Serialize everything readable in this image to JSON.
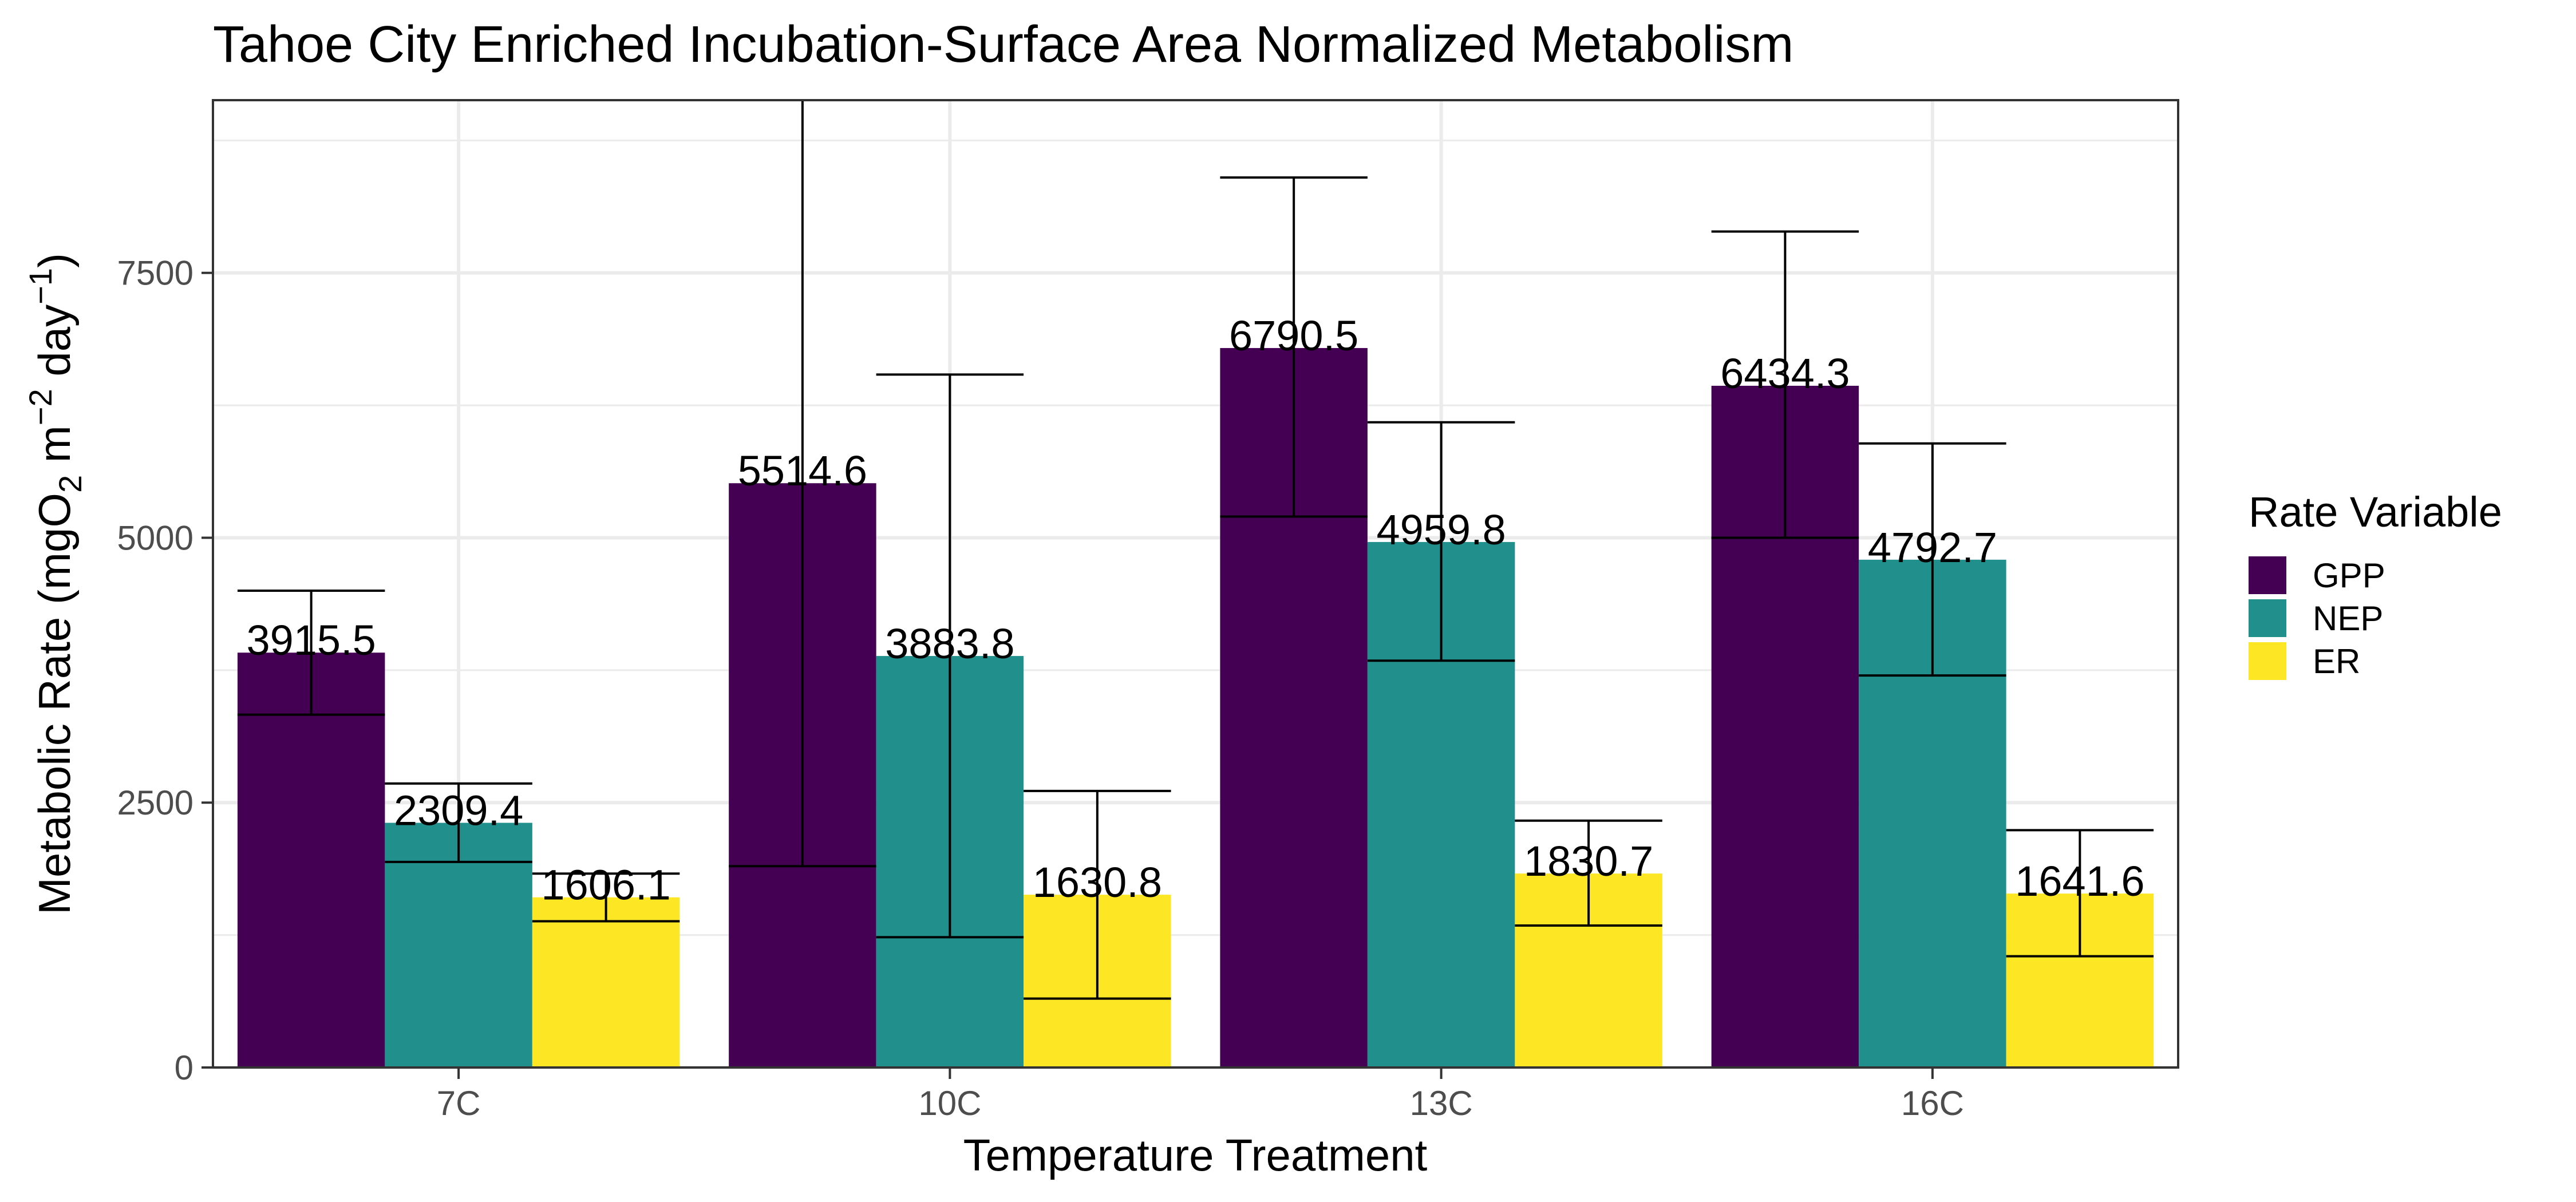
{
  "chart_data": {
    "type": "bar",
    "title": "Tahoe City Enriched Incubation-Surface Area Normalized Metabolism",
    "xlabel": "Temperature Treatment",
    "ylabel": {
      "prefix": "Metabolic Rate (mgO",
      "sub": "2",
      "mid": "  m",
      "sup1": "−2",
      "mid2": " day",
      "sup2": "−1",
      "suffix": ")"
    },
    "categories": [
      "7C",
      "10C",
      "13C",
      "16C"
    ],
    "series": [
      {
        "name": "GPP",
        "color": "#440154",
        "values": [
          3915.5,
          5514.6,
          6790.5,
          6434.3
        ],
        "labels": [
          "3915.5",
          "5514.6",
          "6790.5",
          "6434.3"
        ],
        "err_low": [
          3330,
          1900,
          5200,
          5000
        ],
        "err_high": [
          4500,
          9130,
          8400,
          7890
        ]
      },
      {
        "name": "NEP",
        "color": "#21908C",
        "values": [
          2309.4,
          3883.8,
          4959.8,
          4792.7
        ],
        "labels": [
          "2309.4",
          "3883.8",
          "4959.8",
          "4792.7"
        ],
        "err_low": [
          1940,
          1230,
          3840,
          3700
        ],
        "err_high": [
          2680,
          6540,
          6090,
          5890
        ]
      },
      {
        "name": "ER",
        "color": "#FDE725",
        "values": [
          1606.1,
          1630.8,
          1830.7,
          1641.6
        ],
        "labels": [
          "1606.1",
          "1630.8",
          "1830.7",
          "1641.6"
        ],
        "err_low": [
          1380,
          650,
          1340,
          1050
        ],
        "err_high": [
          1830,
          2610,
          2330,
          2240
        ]
      }
    ],
    "yticks": [
      0,
      2500,
      5000,
      7500
    ],
    "ytick_labels": [
      "0",
      "2500",
      "5000",
      "7500"
    ],
    "ylim": [
      0,
      9130
    ],
    "grid": true,
    "legend": {
      "title": "Rate Variable",
      "position": "right"
    }
  }
}
